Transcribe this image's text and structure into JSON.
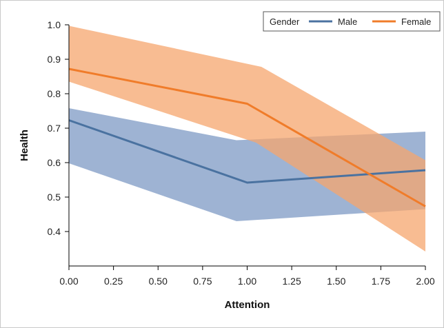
{
  "chart_data": {
    "type": "line",
    "xlabel": "Attention",
    "ylabel": "Health",
    "x": [
      0,
      1,
      2
    ],
    "xlim": [
      0,
      2
    ],
    "ylim": [
      0.3,
      1.0
    ],
    "x_ticks": [
      "0.00",
      "0.25",
      "0.50",
      "0.75",
      "1.00",
      "1.25",
      "1.50",
      "1.75",
      "2.00"
    ],
    "y_ticks": [
      "0.4",
      "0.5",
      "0.6",
      "0.7",
      "0.8",
      "0.9",
      "1.0"
    ],
    "legend": {
      "title": "Gender",
      "placement": "top-right"
    },
    "grid": false,
    "series": [
      {
        "name": "Male",
        "color": "#4a72a0",
        "band_color": "#7d9ac4",
        "values": [
          0.723,
          0.542,
          0.578
        ],
        "lower": [
          [
            0,
            0.598
          ],
          [
            0.94,
            0.43
          ],
          [
            2,
            0.465
          ]
        ],
        "upper": [
          [
            0,
            0.758
          ],
          [
            0.94,
            0.665
          ],
          [
            2,
            0.69
          ]
        ]
      },
      {
        "name": "Female",
        "color": "#f07c2a",
        "band_color": "#f5a66e",
        "values": [
          0.872,
          0.771,
          0.473
        ],
        "lower": [
          [
            0,
            0.835
          ],
          [
            1.05,
            0.658
          ],
          [
            2,
            0.342
          ]
        ],
        "upper": [
          [
            0,
            0.997
          ],
          [
            1.08,
            0.878
          ],
          [
            2,
            0.607
          ]
        ]
      }
    ]
  }
}
